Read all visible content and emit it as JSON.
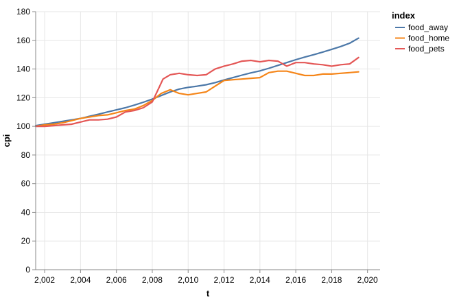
{
  "chart_data": {
    "type": "line",
    "xlabel": "t",
    "ylabel": "cpi",
    "xlim": [
      2001.5,
      2020.7
    ],
    "ylim": [
      0,
      180
    ],
    "x_ticks": [
      2002,
      2004,
      2006,
      2008,
      2010,
      2012,
      2014,
      2016,
      2018,
      2020
    ],
    "x_tick_labels": [
      "2,002",
      "2,004",
      "2,006",
      "2,008",
      "2,010",
      "2,012",
      "2,014",
      "2,016",
      "2,018",
      "2,020"
    ],
    "y_ticks": [
      0,
      20,
      40,
      60,
      80,
      100,
      120,
      140,
      160,
      180
    ],
    "y_tick_labels": [
      "0",
      "20",
      "40",
      "60",
      "80",
      "100",
      "120",
      "140",
      "160",
      "180"
    ],
    "grid": true,
    "legend": {
      "title": "index",
      "position": "right"
    },
    "series": [
      {
        "name": "food_away",
        "color": "#4c78a8",
        "x": [
          2001.5,
          2002,
          2002.5,
          2003,
          2003.5,
          2004,
          2004.5,
          2005,
          2005.5,
          2006,
          2006.5,
          2007,
          2007.5,
          2008,
          2008.5,
          2009,
          2009.5,
          2010,
          2010.5,
          2011,
          2011.5,
          2012,
          2012.5,
          2013,
          2013.5,
          2014,
          2014.5,
          2015,
          2015.5,
          2016,
          2016.5,
          2017,
          2017.5,
          2018,
          2018.5,
          2019,
          2019.5
        ],
        "values": [
          100.5,
          101.5,
          102.5,
          103.5,
          104.5,
          105.5,
          107,
          108.5,
          110,
          111.5,
          113,
          114.8,
          116.8,
          119,
          121.5,
          124,
          126,
          127.2,
          128,
          129,
          130.5,
          132.3,
          134,
          135.7,
          137.3,
          138.7,
          140.5,
          142.5,
          144.5,
          146.5,
          148.3,
          150,
          151.8,
          153.7,
          155.7,
          158,
          161.5
        ]
      },
      {
        "name": "food_home",
        "color": "#f58518",
        "x": [
          2001.5,
          2002,
          2002.5,
          2003,
          2003.5,
          2004,
          2004.5,
          2005,
          2005.5,
          2006,
          2006.5,
          2007,
          2007.5,
          2008,
          2008.5,
          2009,
          2009.5,
          2010,
          2010.5,
          2011,
          2011.5,
          2012,
          2012.5,
          2013,
          2013.5,
          2014,
          2014.5,
          2015,
          2015.5,
          2016,
          2016.5,
          2017,
          2017.5,
          2018,
          2018.5,
          2019,
          2019.5
        ],
        "values": [
          100,
          101,
          101.5,
          102.5,
          104,
          105.5,
          106.5,
          107.5,
          108,
          109.5,
          111,
          112,
          114.5,
          118,
          123,
          125.5,
          123,
          122,
          123,
          124,
          128,
          132,
          132.5,
          133,
          133.5,
          134,
          137.5,
          138.5,
          138.5,
          137,
          135.5,
          135.5,
          136.5,
          136.5,
          137,
          137.5,
          138
        ]
      },
      {
        "name": "food_pets",
        "color": "#e45756",
        "x": [
          2001.5,
          2002,
          2002.5,
          2003,
          2003.5,
          2004,
          2004.5,
          2005,
          2005.5,
          2006,
          2006.5,
          2007,
          2007.5,
          2008,
          2008.3,
          2008.6,
          2009,
          2009.5,
          2010,
          2010.5,
          2011,
          2011.5,
          2012,
          2012.5,
          2013,
          2013.5,
          2014,
          2014.5,
          2015,
          2015.5,
          2016,
          2016.5,
          2017,
          2017.5,
          2018,
          2018.5,
          2019,
          2019.5
        ],
        "values": [
          100,
          100,
          100.5,
          101,
          101.5,
          103,
          104.5,
          104.5,
          105,
          106.5,
          110,
          111,
          113,
          117,
          125,
          133,
          136,
          137,
          136,
          135.5,
          136,
          140,
          142,
          143.5,
          145.5,
          146,
          145,
          146,
          145.5,
          142,
          144.5,
          144.5,
          143.5,
          143,
          142,
          143,
          143.5,
          148
        ]
      }
    ]
  }
}
